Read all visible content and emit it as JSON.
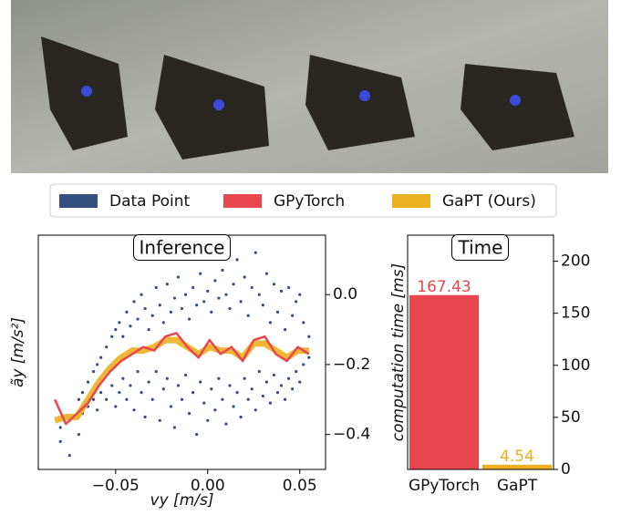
{
  "chart_data": [
    {
      "type": "scatter",
      "title": "Inference",
      "x_label": "vy [m/s]",
      "y_label": "ãy [m/s²]",
      "xlim": [
        -0.092,
        0.064
      ],
      "ylim": [
        -0.5,
        0.17
      ],
      "xticks": [
        {
          "value": -0.05,
          "label": "−0.05"
        },
        {
          "value": 0,
          "label": "0.00"
        },
        0.05
      ],
      "yticks": [
        {
          "value": 0,
          "label": "0.0"
        },
        {
          "value": -0.2,
          "label": "−0.2"
        },
        {
          "value": -0.4,
          "label": "−0.4"
        }
      ],
      "series": [
        {
          "name": "Data Point",
          "color": "#34507f",
          "x": [
            -0.08,
            -0.075,
            -0.07,
            -0.068,
            -0.065,
            -0.062,
            -0.06,
            -0.058,
            -0.055,
            -0.052,
            -0.05,
            -0.048,
            -0.046,
            -0.044,
            -0.042,
            -0.04,
            -0.038,
            -0.036,
            -0.034,
            -0.032,
            -0.03,
            -0.028,
            -0.026,
            -0.024,
            -0.022,
            -0.02,
            -0.018,
            -0.016,
            -0.014,
            -0.012,
            -0.01,
            -0.008,
            -0.006,
            -0.004,
            -0.002,
            0,
            0.002,
            0.004,
            0.006,
            0.008,
            0.01,
            0.012,
            0.014,
            0.016,
            0.018,
            0.02,
            0.022,
            0.024,
            0.026,
            0.028,
            0.03,
            0.032,
            0.034,
            0.036,
            0.038,
            0.04,
            0.042,
            0.044,
            0.046,
            0.048,
            0.05,
            0.052,
            0.055,
            -0.08,
            -0.075,
            -0.07,
            -0.068,
            -0.065,
            -0.062,
            -0.06,
            -0.058,
            -0.055,
            -0.052,
            -0.05,
            -0.048,
            -0.046,
            -0.044,
            -0.042,
            -0.04,
            -0.038,
            -0.036,
            -0.034,
            -0.032,
            -0.03,
            -0.028,
            -0.026,
            -0.024,
            -0.022,
            -0.02,
            -0.018,
            -0.016,
            -0.014,
            -0.012,
            -0.01,
            -0.008,
            -0.006,
            -0.004,
            -0.002,
            0,
            0.002,
            0.004,
            0.006,
            0.008,
            0.01,
            0.012,
            0.014,
            0.016,
            0.018,
            0.02,
            0.022,
            0.024,
            0.026,
            0.028,
            0.03,
            0.032,
            0.034,
            0.036,
            0.038,
            0.04,
            0.042,
            0.044,
            0.046,
            0.048,
            0.05,
            0.052,
            0.055
          ],
          "values": [
            -0.42,
            -0.46,
            -0.3,
            -0.28,
            -0.25,
            -0.22,
            -0.2,
            -0.18,
            -0.15,
            -0.12,
            -0.1,
            -0.08,
            -0.12,
            -0.05,
            -0.09,
            -0.02,
            -0.07,
            0.0,
            -0.04,
            -0.1,
            -0.06,
            0.02,
            -0.03,
            -0.08,
            0.03,
            -0.05,
            -0.01,
            0.05,
            -0.04,
            0.0,
            -0.07,
            0.02,
            -0.03,
            0.06,
            -0.02,
            0.01,
            -0.05,
            0.04,
            -0.01,
            0.07,
            0.0,
            -0.04,
            0.03,
            0.1,
            -0.02,
            0.05,
            -0.06,
            0.02,
            0.12,
            0.0,
            -0.03,
            0.06,
            -0.08,
            0.03,
            -0.05,
            0.01,
            -0.1,
            0.02,
            -0.06,
            -0.02,
            0.0,
            -0.08,
            -0.12,
            -0.38,
            -0.36,
            -0.4,
            -0.34,
            -0.32,
            -0.3,
            -0.33,
            -0.28,
            -0.3,
            -0.26,
            -0.32,
            -0.28,
            -0.24,
            -0.3,
            -0.26,
            -0.33,
            -0.22,
            -0.28,
            -0.35,
            -0.25,
            -0.3,
            -0.22,
            -0.36,
            -0.27,
            -0.24,
            -0.32,
            -0.38,
            -0.26,
            -0.3,
            -0.23,
            -0.34,
            -0.28,
            -0.4,
            -0.25,
            -0.31,
            -0.36,
            -0.27,
            -0.33,
            -0.24,
            -0.3,
            -0.37,
            -0.26,
            -0.32,
            -0.28,
            -0.35,
            -0.24,
            -0.3,
            -0.27,
            -0.33,
            -0.22,
            -0.29,
            -0.25,
            -0.31,
            -0.23,
            -0.28,
            -0.26,
            -0.3,
            -0.24,
            -0.27,
            -0.22,
            -0.25,
            -0.2,
            -0.18
          ]
        },
        {
          "name": "GaPT (Ours)",
          "color": "#ecb020",
          "x": [
            -0.083,
            -0.077,
            -0.071,
            -0.065,
            -0.059,
            -0.053,
            -0.047,
            -0.041,
            -0.035,
            -0.029,
            -0.023,
            -0.017,
            -0.011,
            -0.005,
            0.001,
            0.007,
            0.013,
            0.019,
            0.025,
            0.031,
            0.037,
            0.043,
            0.049,
            0.055
          ],
          "values": [
            -0.36,
            -0.35,
            -0.35,
            -0.3,
            -0.25,
            -0.21,
            -0.18,
            -0.16,
            -0.16,
            -0.15,
            -0.13,
            -0.13,
            -0.15,
            -0.17,
            -0.15,
            -0.16,
            -0.16,
            -0.18,
            -0.14,
            -0.14,
            -0.16,
            -0.18,
            -0.16,
            -0.16
          ]
        },
        {
          "name": "GPyTorch",
          "color": "#e8474f",
          "x": [
            -0.083,
            -0.077,
            -0.071,
            -0.065,
            -0.059,
            -0.053,
            -0.047,
            -0.041,
            -0.035,
            -0.029,
            -0.023,
            -0.017,
            -0.011,
            -0.005,
            0.001,
            0.007,
            0.013,
            0.019,
            0.025,
            0.031,
            0.037,
            0.043,
            0.049,
            0.055
          ],
          "values": [
            -0.3,
            -0.37,
            -0.34,
            -0.31,
            -0.26,
            -0.22,
            -0.19,
            -0.17,
            -0.15,
            -0.16,
            -0.12,
            -0.11,
            -0.15,
            -0.18,
            -0.13,
            -0.17,
            -0.15,
            -0.19,
            -0.13,
            -0.12,
            -0.17,
            -0.19,
            -0.15,
            -0.17
          ]
        }
      ]
    },
    {
      "type": "bar",
      "title": "Time",
      "y_label": "computation time [ms]",
      "categories": [
        "GPyTorch",
        "GaPT"
      ],
      "values": [
        167.43,
        4.54
      ],
      "colors": [
        "#e8474f",
        "#ecb020"
      ],
      "ylim": [
        0,
        225
      ],
      "yticks": [
        0,
        50,
        100,
        150,
        200
      ]
    }
  ]
}
